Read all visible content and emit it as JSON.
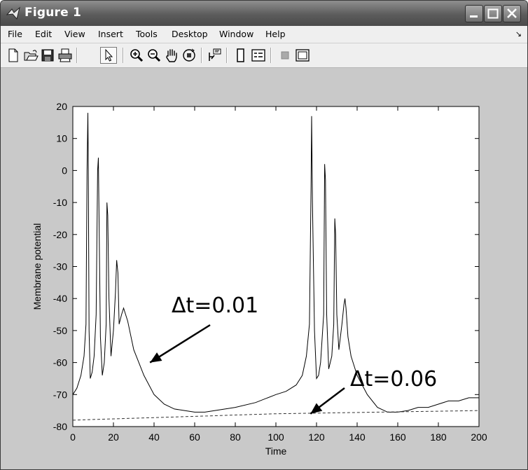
{
  "window": {
    "title": "Figure 1"
  },
  "menu": [
    "File",
    "Edit",
    "View",
    "Insert",
    "Tools",
    "Desktop",
    "Window",
    "Help"
  ],
  "toolbar": {
    "buttons": [
      "new-figure",
      "open-file",
      "save",
      "print",
      "edit-plot",
      "zoom-in",
      "zoom-out",
      "pan",
      "rotate-3d",
      "data-cursor",
      "colorbar",
      "legend",
      "hide-plot-tools",
      "show-plot-tools"
    ]
  },
  "chart_data": {
    "type": "line",
    "xlabel": "Time",
    "ylabel": "Membrane potential",
    "xlim": [
      0,
      200
    ],
    "ylim": [
      -80,
      20
    ],
    "xticks": [
      0,
      20,
      40,
      60,
      80,
      100,
      120,
      140,
      160,
      180,
      200
    ],
    "yticks": [
      20,
      10,
      0,
      -10,
      -20,
      -30,
      -40,
      -50,
      -60,
      -70,
      -80
    ],
    "grid": false,
    "series": [
      {
        "style": "solid",
        "x": [
          0,
          2,
          4,
          5.5,
          6.5,
          7.0,
          7.4,
          7.6,
          8.0,
          8.6,
          9.5,
          10.5,
          11.5,
          12.2,
          12.6,
          13.0,
          13.6,
          14.5,
          15.5,
          16.4,
          16.8,
          17.2,
          17.8,
          18.8,
          20,
          21,
          21.6,
          22.2,
          22.8,
          24,
          25,
          27,
          30,
          35,
          40,
          45,
          50,
          55,
          60,
          65,
          70,
          80,
          90,
          100,
          105,
          110,
          113,
          115,
          116.5,
          117.3,
          117.6,
          118.0,
          119,
          120,
          121,
          122,
          123.5,
          124.0,
          124.4,
          125,
          126,
          127.5,
          128.5,
          129.0,
          129.4,
          130,
          131,
          132.5,
          133.5,
          134,
          134.5,
          135.5,
          137,
          140,
          145,
          150,
          155,
          160,
          165,
          170,
          175,
          180,
          185,
          190,
          195,
          200
        ],
        "y": [
          -70,
          -68,
          -64,
          -58,
          -48,
          0,
          18,
          5,
          -50,
          -65,
          -63,
          -58,
          -45,
          0,
          4,
          -20,
          -52,
          -64,
          -60,
          -48,
          -10,
          -14,
          -40,
          -58,
          -50,
          -38,
          -28,
          -32,
          -48,
          -45,
          -43,
          -47,
          -56,
          -64,
          -70,
          -73,
          -74.5,
          -75,
          -75.5,
          -75.5,
          -75,
          -74,
          -72.5,
          -70,
          -69,
          -67,
          -64,
          -58,
          -48,
          -5,
          17,
          -10,
          -50,
          -65,
          -64,
          -60,
          -45,
          2,
          -3,
          -45,
          -62,
          -58,
          -48,
          -15,
          -20,
          -45,
          -56,
          -48,
          -42,
          -40,
          -43,
          -52,
          -58,
          -64,
          -70,
          -74,
          -75.5,
          -75.5,
          -75,
          -74,
          -74,
          -73,
          -72,
          -72,
          -71,
          -71
        ]
      },
      {
        "style": "dashed",
        "x": [
          0,
          10,
          20,
          30,
          40,
          50,
          60,
          70,
          80,
          90,
          100,
          110,
          120,
          130,
          140,
          150,
          160,
          170,
          180,
          190,
          200
        ],
        "y": [
          -78,
          -77.8,
          -77.6,
          -77.4,
          -77.2,
          -77,
          -76.8,
          -76.6,
          -76.4,
          -76.2,
          -76,
          -75.9,
          -75.8,
          -75.7,
          -75.6,
          -75.5,
          -75.4,
          -75.3,
          -75.2,
          -75.1,
          -75
        ]
      }
    ],
    "annotations": [
      {
        "text": "Δt=0.01",
        "arrow_to": [
          38,
          -60
        ]
      },
      {
        "text": "Δt=0.06",
        "arrow_to": [
          117,
          -76
        ]
      }
    ]
  }
}
